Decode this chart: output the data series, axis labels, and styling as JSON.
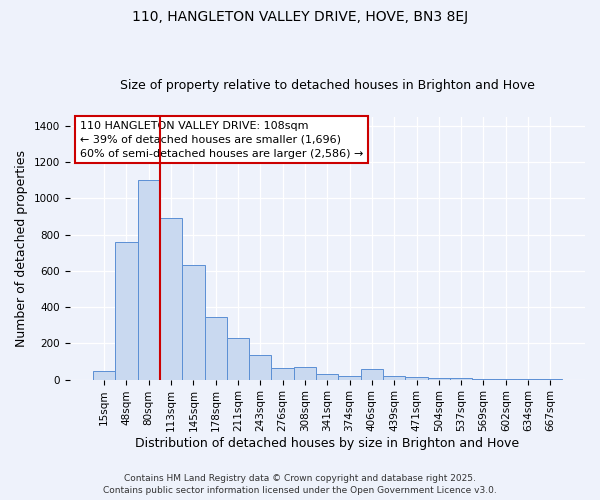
{
  "title": "110, HANGLETON VALLEY DRIVE, HOVE, BN3 8EJ",
  "subtitle": "Size of property relative to detached houses in Brighton and Hove",
  "xlabel": "Distribution of detached houses by size in Brighton and Hove",
  "ylabel": "Number of detached properties",
  "bar_labels": [
    "15sqm",
    "48sqm",
    "80sqm",
    "113sqm",
    "145sqm",
    "178sqm",
    "211sqm",
    "243sqm",
    "276sqm",
    "308sqm",
    "341sqm",
    "374sqm",
    "406sqm",
    "439sqm",
    "471sqm",
    "504sqm",
    "537sqm",
    "569sqm",
    "602sqm",
    "634sqm",
    "667sqm"
  ],
  "bar_values": [
    50,
    760,
    1100,
    890,
    630,
    345,
    230,
    135,
    65,
    70,
    30,
    20,
    60,
    20,
    15,
    10,
    8,
    5,
    5,
    3,
    5
  ],
  "bar_color": "#c9d9f0",
  "bar_edge_color": "#5b8fd4",
  "ylim": [
    0,
    1450
  ],
  "yticks": [
    0,
    200,
    400,
    600,
    800,
    1000,
    1200,
    1400
  ],
  "vline_color": "#cc0000",
  "vline_position": 2.5,
  "annotation_line1": "110 HANGLETON VALLEY DRIVE: 108sqm",
  "annotation_line2": "← 39% of detached houses are smaller (1,696)",
  "annotation_line3": "60% of semi-detached houses are larger (2,586) →",
  "footer1": "Contains HM Land Registry data © Crown copyright and database right 2025.",
  "footer2": "Contains public sector information licensed under the Open Government Licence v3.0.",
  "bg_color": "#eef2fb",
  "title_fontsize": 10,
  "subtitle_fontsize": 9,
  "axis_label_fontsize": 9,
  "tick_fontsize": 7.5,
  "annotation_fontsize": 8,
  "footer_fontsize": 6.5
}
